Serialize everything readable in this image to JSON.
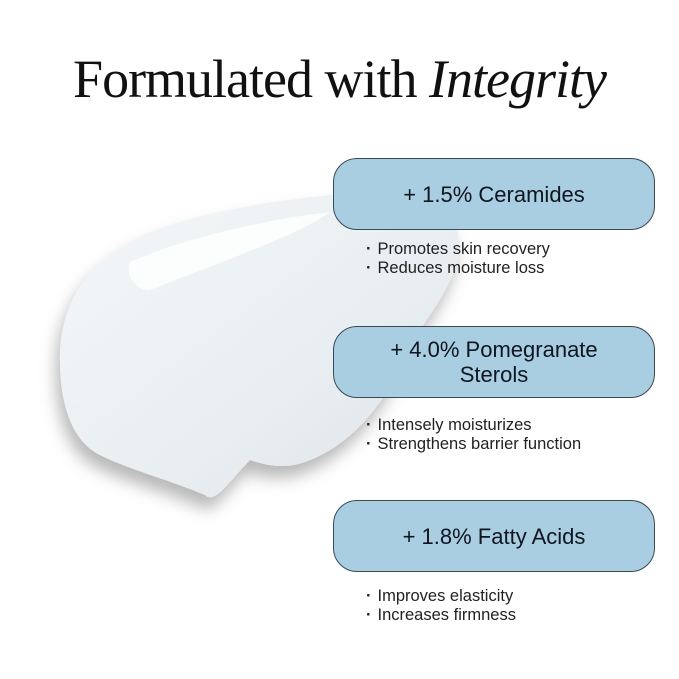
{
  "title": {
    "prefix": "Formulated with ",
    "emphasis": "Integrity"
  },
  "ingredients": [
    {
      "label": "+ 1.5% Ceramides",
      "benefits": [
        "Promotes skin recovery",
        "Reduces moisture loss"
      ]
    },
    {
      "label": "+ 4.0% Pomegranate Sterols",
      "benefits": [
        "Intensely moisturizes",
        "Strengthens barrier function"
      ]
    },
    {
      "label": "+ 1.8% Fatty Acids",
      "benefits": [
        "Improves elasticity",
        "Increases firmness"
      ]
    }
  ],
  "colors": {
    "pill": "#a9cde1",
    "pill_border": "#3a4a55",
    "text": "#111111"
  }
}
